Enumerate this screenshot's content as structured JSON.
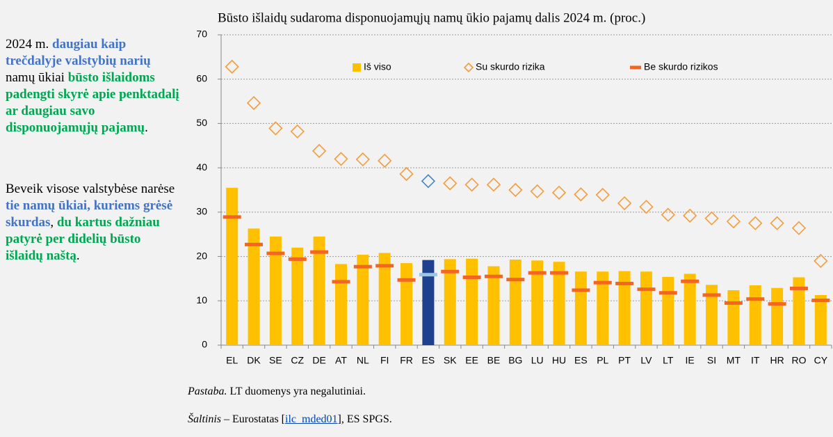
{
  "side_text": [
    [
      {
        "text": "2024 m. ",
        "color": "#000000",
        "bold": false
      },
      {
        "text": "daugiau kaip trečdalyje valstybių narių",
        "color": "#4472c4",
        "bold": true
      },
      {
        "text": " namų ūkiai ",
        "color": "#000000",
        "bold": false
      },
      {
        "text": "būsto išlaidoms padengti skyrė apie penktadalį ar daugiau savo disponuojamųjų pajamų",
        "color": "#00a651",
        "bold": true
      },
      {
        "text": ".",
        "color": "#000000",
        "bold": false
      }
    ],
    [
      {
        "text": "Beveik visose valstybėse narėse ",
        "color": "#000000",
        "bold": false
      },
      {
        "text": "tie namų ūkiai, kuriems grėsė skurdas",
        "color": "#4472c4",
        "bold": true
      },
      {
        "text": ", ",
        "color": "#000000",
        "bold": false
      },
      {
        "text": "du kartus dažniau patyrė per didelių būsto išlaidų naštą",
        "color": "#00a651",
        "bold": true
      },
      {
        "text": ".",
        "color": "#000000",
        "bold": false
      }
    ]
  ],
  "notes": {
    "note_label": "Pastaba.",
    "note_text": " LT duomenys yra negalutiniai.",
    "source_label": "Šaltinis",
    "source_pre": " – Eurostatas [",
    "source_link": "ilc_mded01",
    "source_post": "], ES SPGS."
  },
  "chart_data": {
    "type": "bar_with_markers",
    "title": "Būsto išlaidų sudaroma disponuojamųjų namų ūkio pajamų dalis 2024 m. (proc.)",
    "categories": [
      "EL",
      "DK",
      "SE",
      "CZ",
      "DE",
      "AT",
      "NL",
      "FI",
      "FR",
      "ES",
      "SK",
      "EE",
      "BE",
      "BG",
      "LU",
      "HU",
      "ES",
      "PL",
      "PT",
      "LV",
      "LT",
      "IE",
      "SI",
      "MT",
      "IT",
      "HR",
      "RO",
      "CY"
    ],
    "highlight_category_index": 9,
    "ylim": [
      0,
      70
    ],
    "yticks": [
      0,
      10,
      20,
      30,
      40,
      50,
      60,
      70
    ],
    "grid": true,
    "series": [
      {
        "name": "Iš viso",
        "mark": "bar",
        "color": "#ffc000",
        "highlight_color": "#1f3f8f",
        "values": [
          35.5,
          26.3,
          24.5,
          22,
          24.5,
          18.3,
          20.4,
          20.8,
          18.5,
          19.2,
          19.4,
          19.5,
          17.8,
          19.3,
          19.1,
          18.8,
          16.6,
          16.6,
          16.7,
          16.6,
          15.4,
          16.1,
          13.6,
          12.4,
          13.5,
          12.9,
          15.3,
          11.3
        ]
      },
      {
        "name": "Su skurdo rizika",
        "mark": "diamond",
        "color": "#f39c3c",
        "highlight_color": "#3d85c6",
        "values": [
          62.8,
          54.6,
          48.9,
          48.2,
          43.8,
          42,
          41.9,
          41.6,
          38.6,
          37,
          36.5,
          36.2,
          36.2,
          35,
          34.7,
          34.4,
          34,
          33.9,
          32,
          31.2,
          29.4,
          29.2,
          28.6,
          27.9,
          27.5,
          27.5,
          26.4,
          19
        ]
      },
      {
        "name": "Be skurdo rizikos",
        "mark": "dash",
        "color": "#f26522",
        "highlight_color": "#9dc3e6",
        "values": [
          28.9,
          22.7,
          20.7,
          19.4,
          21,
          14.3,
          17.7,
          17.9,
          14.7,
          15.9,
          16.6,
          15.3,
          15.5,
          14.8,
          16.3,
          16.3,
          12.4,
          14.1,
          13.9,
          12.6,
          11.8,
          14.4,
          11.3,
          9.5,
          10.4,
          9.3,
          12.8,
          10.1
        ]
      }
    ]
  }
}
